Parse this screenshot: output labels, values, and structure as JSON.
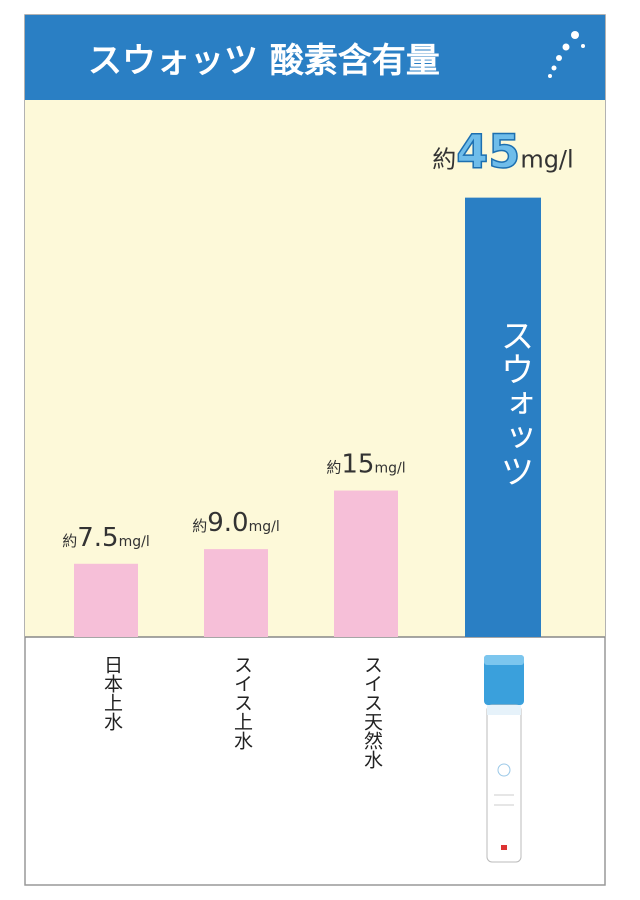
{
  "chart_data": {
    "type": "bar",
    "title": "スウォッツ 酸素含有量",
    "categories": [
      "日本上水",
      "スイス上水",
      "スイス天然水",
      null
    ],
    "values": [
      7.5,
      9.0,
      15,
      45
    ],
    "value_labels": [
      "7.5",
      "9.0",
      "15",
      "45"
    ],
    "value_prefix": "約",
    "value_unit": "mg/l",
    "colors": [
      "#f6bfd8",
      "#f6bfd8",
      "#f6bfd8",
      "#2a7fc4"
    ],
    "bar_annotation": "スウォッツ",
    "ylim": [
      0,
      55
    ]
  }
}
